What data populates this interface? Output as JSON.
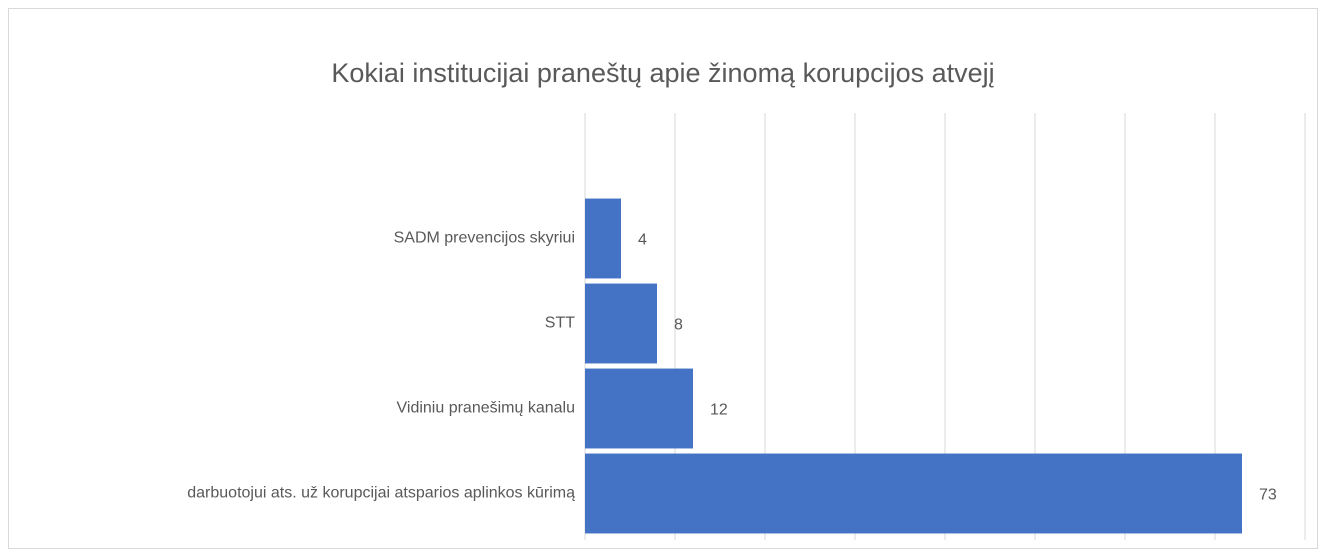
{
  "chart_data": {
    "type": "bar",
    "orientation": "horizontal",
    "title": "Kokiai institucijai  praneštų apie žinomą korupcijos atvejį",
    "categories": [
      "SADM prevencijos skyriui",
      "STT",
      "Vidiniu pranešimų kanalu",
      "darbuotojui ats. už korupcijai atsparios aplinkos kūrimą"
    ],
    "values": [
      4,
      8,
      12,
      73
    ],
    "color": "#4472c4",
    "xlim": [
      0,
      80
    ],
    "xticks": [
      0,
      10,
      20,
      30,
      40,
      50,
      60,
      70,
      80
    ],
    "grid": true
  }
}
